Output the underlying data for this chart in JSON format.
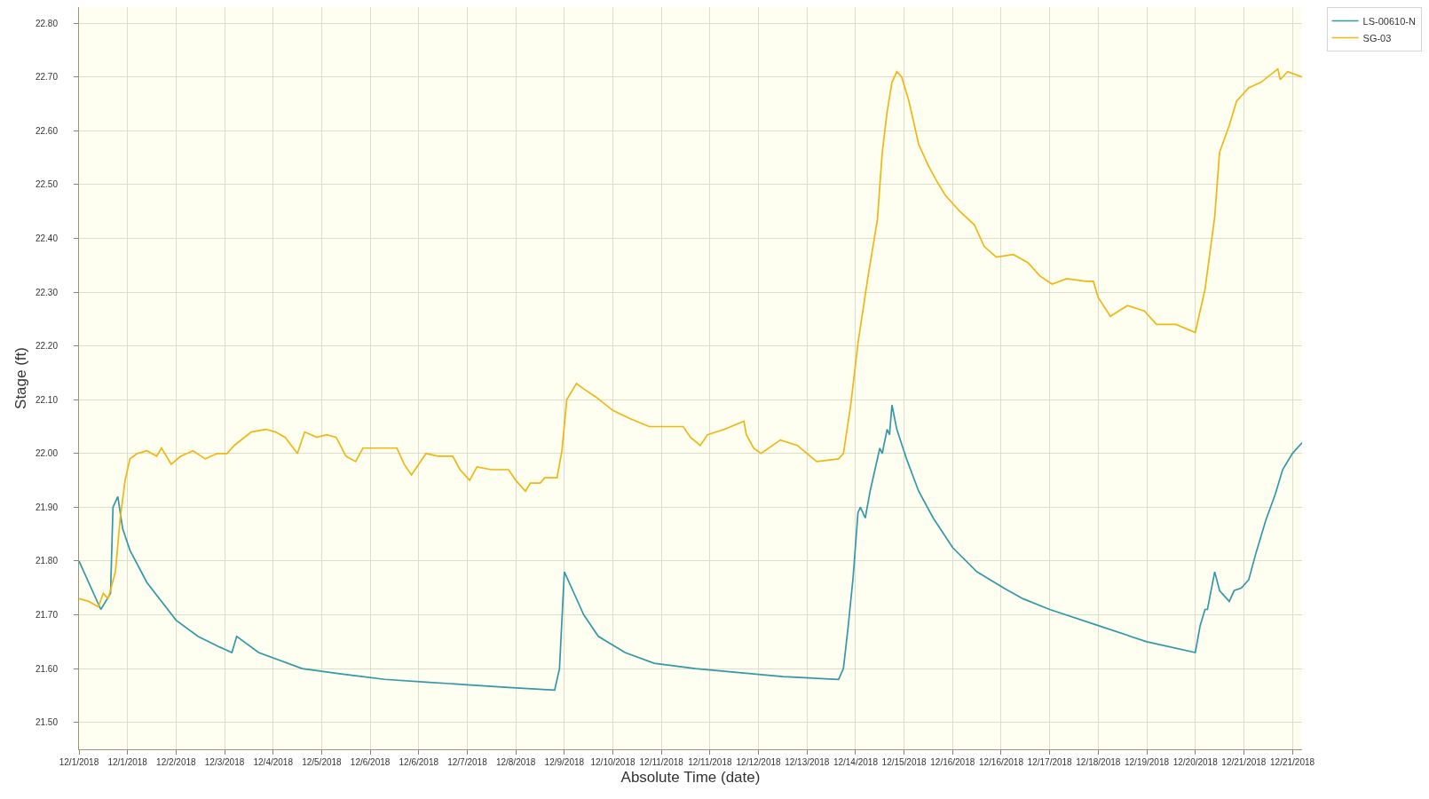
{
  "chart_data": {
    "type": "line",
    "xlabel": "Absolute Time (date)",
    "ylabel": "Stage (ft)",
    "xlim": [
      "2018-12-01T00:00",
      "2018-12-22T00:00"
    ],
    "xticks": [
      {
        "value": "2018-12-01T00:00",
        "label": "12/1/2018"
      },
      {
        "value": "2018-12-01T20:00",
        "label": "12/1/2018"
      },
      {
        "value": "2018-12-02T16:00",
        "label": "12/2/2018"
      },
      {
        "value": "2018-12-03T12:00",
        "label": "12/3/2018"
      },
      {
        "value": "2018-12-04T08:00",
        "label": "12/4/2018"
      },
      {
        "value": "2018-12-05T04:00",
        "label": "12/5/2018"
      },
      {
        "value": "2018-12-06T00:00",
        "label": "12/6/2018"
      },
      {
        "value": "2018-12-06T20:00",
        "label": "12/6/2018"
      },
      {
        "value": "2018-12-07T16:00",
        "label": "12/7/2018"
      },
      {
        "value": "2018-12-08T12:00",
        "label": "12/8/2018"
      },
      {
        "value": "2018-12-09T08:00",
        "label": "12/9/2018"
      },
      {
        "value": "2018-12-10T04:00",
        "label": "12/10/2018"
      },
      {
        "value": "2018-12-11T00:00",
        "label": "12/11/2018"
      },
      {
        "value": "2018-12-11T20:00",
        "label": "12/11/2018"
      },
      {
        "value": "2018-12-12T16:00",
        "label": "12/12/2018"
      },
      {
        "value": "2018-12-13T12:00",
        "label": "12/13/2018"
      },
      {
        "value": "2018-12-14T08:00",
        "label": "12/14/2018"
      },
      {
        "value": "2018-12-15T04:00",
        "label": "12/15/2018"
      },
      {
        "value": "2018-12-16T00:00",
        "label": "12/16/2018"
      },
      {
        "value": "2018-12-16T20:00",
        "label": "12/16/2018"
      },
      {
        "value": "2018-12-17T16:00",
        "label": "12/17/2018"
      },
      {
        "value": "2018-12-18T12:00",
        "label": "12/18/2018"
      },
      {
        "value": "2018-12-19T08:00",
        "label": "12/19/2018"
      },
      {
        "value": "2018-12-20T04:00",
        "label": "12/20/2018"
      },
      {
        "value": "2018-12-21T00:00",
        "label": "12/21/2018"
      },
      {
        "value": "2018-12-21T20:00",
        "label": "12/21/2018"
      }
    ],
    "ylim": [
      21.45,
      22.83
    ],
    "yticks": [
      {
        "value": 21.5,
        "label": "21.50"
      },
      {
        "value": 21.6,
        "label": "21.60"
      },
      {
        "value": 21.7,
        "label": "21.70"
      },
      {
        "value": 21.8,
        "label": "21.80"
      },
      {
        "value": 21.9,
        "label": "21.90"
      },
      {
        "value": 22.0,
        "label": "22.00"
      },
      {
        "value": 22.1,
        "label": "22.10"
      },
      {
        "value": 22.2,
        "label": "22.20"
      },
      {
        "value": 22.3,
        "label": "22.30"
      },
      {
        "value": 22.4,
        "label": "22.40"
      },
      {
        "value": 22.5,
        "label": "22.50"
      },
      {
        "value": 22.6,
        "label": "22.60"
      },
      {
        "value": 22.7,
        "label": "22.70"
      },
      {
        "value": 22.8,
        "label": "22.80"
      }
    ],
    "grid": true,
    "legend": "top right",
    "series": [
      {
        "name": "LS-00610-N",
        "color": "#3399a6",
        "x": [
          "2018-12-01T00:00",
          "2018-12-01T09:00",
          "2018-12-01T13:00",
          "2018-12-01T14:00",
          "2018-12-01T16:00",
          "2018-12-01T18:00",
          "2018-12-01T21:00",
          "2018-12-02T04:00",
          "2018-12-02T16:00",
          "2018-12-03T01:00",
          "2018-12-03T10:00",
          "2018-12-03T15:00",
          "2018-12-03T17:00",
          "2018-12-04T02:00",
          "2018-12-04T20:00",
          "2018-12-05T12:00",
          "2018-12-06T06:00",
          "2018-12-06T23:00",
          "2018-12-07T16:00",
          "2018-12-08T09:00",
          "2018-12-09T04:00",
          "2018-12-09T06:00",
          "2018-12-09T08:00",
          "2018-12-09T11:00",
          "2018-12-09T16:00",
          "2018-12-09T22:00",
          "2018-12-10T09:00",
          "2018-12-10T21:00",
          "2018-12-11T14:00",
          "2018-12-12T02:00",
          "2018-12-13T02:00",
          "2018-12-14T01:00",
          "2018-12-14T03:00",
          "2018-12-14T05:00",
          "2018-12-14T07:00",
          "2018-12-14T09:00",
          "2018-12-14T10:00",
          "2018-12-14T12:00",
          "2018-12-14T14:00",
          "2018-12-14T16:00",
          "2018-12-14T18:00",
          "2018-12-14T19:00",
          "2018-12-14T21:00",
          "2018-12-14T22:00",
          "2018-12-14T23:00",
          "2018-12-15T01:00",
          "2018-12-15T05:00",
          "2018-12-15T10:00",
          "2018-12-15T16:00",
          "2018-12-16T00:00",
          "2018-12-16T10:00",
          "2018-12-16T21:00",
          "2018-12-17T05:00",
          "2018-12-17T16:00",
          "2018-12-18T12:00",
          "2018-12-19T08:00",
          "2018-12-20T04:00",
          "2018-12-20T06:00",
          "2018-12-20T08:00",
          "2018-12-20T09:00",
          "2018-12-20T12:00",
          "2018-12-20T14:00",
          "2018-12-20T18:00",
          "2018-12-20T20:00",
          "2018-12-20T23:00",
          "2018-12-21T02:00",
          "2018-12-21T05:00",
          "2018-12-21T09:00",
          "2018-12-21T13:00",
          "2018-12-21T16:00",
          "2018-12-21T20:00",
          "2018-12-22T00:00"
        ],
        "values": [
          21.8,
          21.71,
          21.74,
          21.9,
          21.92,
          21.86,
          21.82,
          21.76,
          21.69,
          21.66,
          21.64,
          21.63,
          21.66,
          21.63,
          21.6,
          21.59,
          21.58,
          21.575,
          21.57,
          21.565,
          21.56,
          21.6,
          21.78,
          21.75,
          21.7,
          21.66,
          21.63,
          21.61,
          21.6,
          21.595,
          21.585,
          21.58,
          21.6,
          21.68,
          21.77,
          21.89,
          21.9,
          21.88,
          21.93,
          21.97,
          22.01,
          22.0,
          22.045,
          22.035,
          22.09,
          22.045,
          21.99,
          21.93,
          21.88,
          21.825,
          21.78,
          21.75,
          21.73,
          21.71,
          21.68,
          21.65,
          21.63,
          21.68,
          21.71,
          21.71,
          21.78,
          21.745,
          21.725,
          21.745,
          21.75,
          21.765,
          21.815,
          21.875,
          21.925,
          21.97,
          22.0,
          22.02
        ]
      },
      {
        "name": "SG-03",
        "color": "#efb713",
        "x": [
          "2018-12-01T00:00",
          "2018-12-01T04:00",
          "2018-12-01T08:00",
          "2018-12-01T10:00",
          "2018-12-01T12:00",
          "2018-12-01T15:00",
          "2018-12-01T17:00",
          "2018-12-01T19:00",
          "2018-12-01T21:00",
          "2018-12-02T00:00",
          "2018-12-02T04:00",
          "2018-12-02T08:00",
          "2018-12-02T10:00",
          "2018-12-02T14:00",
          "2018-12-02T18:00",
          "2018-12-02T23:00",
          "2018-12-03T04:00",
          "2018-12-03T09:00",
          "2018-12-03T13:00",
          "2018-12-03T16:00",
          "2018-12-03T23:00",
          "2018-12-04T05:00",
          "2018-12-04T09:00",
          "2018-12-04T13:00",
          "2018-12-04T18:00",
          "2018-12-04T21:00",
          "2018-12-05T02:00",
          "2018-12-05T06:00",
          "2018-12-05T10:00",
          "2018-12-05T14:00",
          "2018-12-05T18:00",
          "2018-12-05T21:00",
          "2018-12-06T04:00",
          "2018-12-06T11:00",
          "2018-12-06T14:00",
          "2018-12-06T17:00",
          "2018-12-06T23:00",
          "2018-12-07T04:00",
          "2018-12-07T10:00",
          "2018-12-07T13:00",
          "2018-12-07T17:00",
          "2018-12-07T20:00",
          "2018-12-08T02:00",
          "2018-12-08T09:00",
          "2018-12-08T12:00",
          "2018-12-08T16:00",
          "2018-12-08T18:00",
          "2018-12-08T22:00",
          "2018-12-09T00:00",
          "2018-12-09T05:00",
          "2018-12-09T07:00",
          "2018-12-09T09:00",
          "2018-12-09T13:00",
          "2018-12-09T16:00",
          "2018-12-09T21:00",
          "2018-12-10T04:00",
          "2018-12-10T11:00",
          "2018-12-10T19:00",
          "2018-12-11T02:00",
          "2018-12-11T09:00",
          "2018-12-11T12:00",
          "2018-12-11T16:00",
          "2018-12-11T19:00",
          "2018-12-12T02:00",
          "2018-12-12T10:00",
          "2018-12-12T11:00",
          "2018-12-12T14:00",
          "2018-12-12T17:00",
          "2018-12-13T01:00",
          "2018-12-13T08:00",
          "2018-12-13T16:00",
          "2018-12-14T01:00",
          "2018-12-14T03:00",
          "2018-12-14T06:00",
          "2018-12-14T09:00",
          "2018-12-14T13:00",
          "2018-12-14T17:00",
          "2018-12-14T19:00",
          "2018-12-14T21:00",
          "2018-12-14T23:00",
          "2018-12-15T01:00",
          "2018-12-15T03:00",
          "2018-12-15T06:00",
          "2018-12-15T10:00",
          "2018-12-15T14:00",
          "2018-12-15T17:00",
          "2018-12-15T21:00",
          "2018-12-16T03:00",
          "2018-12-16T09:00",
          "2018-12-16T13:00",
          "2018-12-16T18:00",
          "2018-12-17T01:00",
          "2018-12-17T07:00",
          "2018-12-17T12:00",
          "2018-12-17T17:00",
          "2018-12-17T23:00",
          "2018-12-18T07:00",
          "2018-12-18T10:00",
          "2018-12-18T12:00",
          "2018-12-18T17:00",
          "2018-12-19T00:00",
          "2018-12-19T07:00",
          "2018-12-19T12:00",
          "2018-12-19T20:00",
          "2018-12-20T04:00",
          "2018-12-20T08:00",
          "2018-12-20T12:00",
          "2018-12-20T14:00",
          "2018-12-20T18:00",
          "2018-12-20T21:00",
          "2018-12-21T02:00",
          "2018-12-21T07:00",
          "2018-12-21T14:00",
          "2018-12-21T15:00",
          "2018-12-21T18:00",
          "2018-12-22T00:00"
        ],
        "values": [
          21.73,
          21.725,
          21.715,
          21.74,
          21.73,
          21.78,
          21.88,
          21.95,
          21.99,
          22.0,
          22.005,
          21.995,
          22.01,
          21.98,
          21.995,
          22.005,
          21.99,
          22.0,
          22.0,
          22.015,
          22.04,
          22.045,
          22.04,
          22.03,
          22.0,
          22.04,
          22.03,
          22.035,
          22.03,
          21.995,
          21.985,
          22.01,
          22.01,
          22.01,
          21.98,
          21.96,
          22.0,
          21.995,
          21.995,
          21.97,
          21.95,
          21.975,
          21.97,
          21.97,
          21.95,
          21.93,
          21.945,
          21.945,
          21.955,
          21.955,
          22.005,
          22.1,
          22.13,
          22.12,
          22.105,
          22.08,
          22.065,
          22.05,
          22.05,
          22.05,
          22.03,
          22.015,
          22.035,
          22.045,
          22.06,
          22.035,
          22.01,
          22.0,
          22.025,
          22.015,
          21.985,
          21.99,
          22.0,
          22.09,
          22.205,
          22.325,
          22.435,
          22.56,
          22.635,
          22.69,
          22.71,
          22.7,
          22.655,
          22.575,
          22.535,
          22.51,
          22.48,
          22.45,
          22.425,
          22.385,
          22.365,
          22.37,
          22.355,
          22.33,
          22.315,
          22.325,
          22.32,
          22.32,
          22.29,
          22.255,
          22.275,
          22.265,
          22.24,
          22.24,
          22.225,
          22.305,
          22.44,
          22.56,
          22.61,
          22.655,
          22.68,
          22.69,
          22.715,
          22.695,
          22.71,
          22.7
        ]
      }
    ]
  }
}
